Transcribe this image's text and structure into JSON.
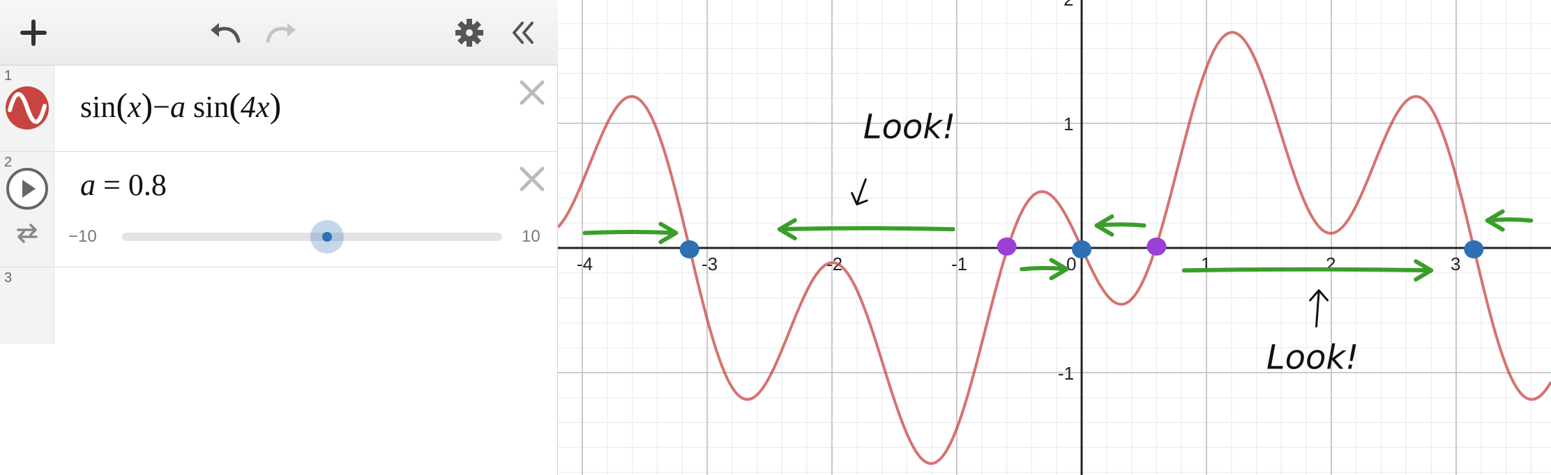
{
  "toolbar": {
    "add_icon": "plus-icon",
    "undo_icon": "undo-icon",
    "redo_icon": "redo-icon",
    "settings_icon": "gear-icon",
    "collapse_icon": "double-chevron-left-icon"
  },
  "expressions": [
    {
      "number": "1",
      "icon": "sine-wave-icon",
      "color": "#c74440",
      "latex_parts": [
        "sin",
        "(",
        "x",
        ")",
        "−",
        "a",
        " sin",
        "(",
        "4x",
        ")"
      ]
    },
    {
      "number": "2",
      "icon": "play-icon",
      "variable": "a",
      "equals": "=",
      "value": "0.8",
      "slider": {
        "min": "−10",
        "max": "10",
        "value": 0.8,
        "loop_icon": "repeat-icon"
      }
    },
    {
      "number": "3"
    }
  ],
  "graph": {
    "x_ticks": [
      "-4",
      "-3",
      "-2",
      "-1",
      "0",
      "1",
      "2",
      "3"
    ],
    "y_ticks": [
      "2",
      "1",
      "-1"
    ],
    "xlim": [
      -4.05,
      7.2
    ],
    "ylim": [
      -1.8,
      2.0
    ],
    "curve_color": "#c74440",
    "stable_point_color": "#2d70b3",
    "unstable_point_color": "#9b3fd9",
    "arrow_color": "#3a9e2a",
    "annotations": [
      "Look!",
      "Look!"
    ],
    "stable_points": [
      -3.14159,
      0,
      3.14159
    ],
    "unstable_points": [
      -0.6,
      0.6
    ]
  }
}
